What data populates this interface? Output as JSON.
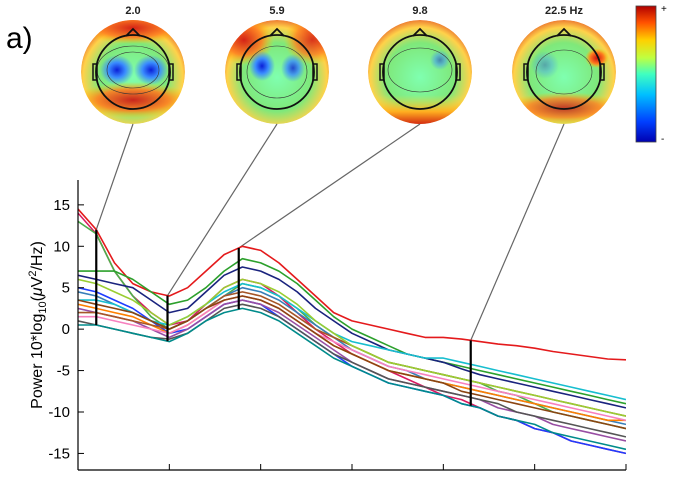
{
  "panel_label": "a)",
  "chart_data": {
    "type": "line",
    "ylabel": "Power 10*log10(μV²/Hz)",
    "ylim": [
      -17,
      18
    ],
    "yticks": [
      15,
      10,
      5,
      0,
      -5,
      -10,
      -15
    ],
    "xlim": [
      1,
      31
    ],
    "x": [
      1,
      2,
      3,
      4,
      5,
      6,
      7,
      8,
      9,
      10,
      11,
      12,
      13,
      14,
      15,
      16,
      17,
      18,
      19,
      20,
      21,
      22,
      23,
      24,
      25,
      26,
      27,
      28,
      29,
      30,
      31
    ],
    "grid": false,
    "legend": "none",
    "highlighted_frequencies": [
      2.0,
      5.9,
      9.8,
      22.5
    ],
    "topomap_labels": [
      "2.0",
      "5.9",
      "9.8",
      "22.5 Hz"
    ],
    "colorbar": {
      "max_label": "+",
      "min_label": "-"
    },
    "series": [
      {
        "color": "#e41a1c",
        "values": [
          14.5,
          12,
          8,
          5.5,
          4.5,
          4,
          5,
          7,
          9,
          10,
          9.5,
          8,
          6,
          4,
          2,
          1,
          0.5,
          0,
          -0.5,
          -1,
          -1,
          -1.2,
          -1.5,
          -1.8,
          -2,
          -2.3,
          -2.7,
          -3,
          -3.3,
          -3.6,
          -3.7
        ]
      },
      {
        "color": "#d81b60",
        "values": [
          14,
          11.5,
          7,
          4,
          2,
          0.5,
          1,
          3,
          5,
          6,
          5.5,
          4,
          2,
          0,
          -1.5,
          -3,
          -4,
          -5,
          -6,
          -7,
          -8,
          -8.5,
          -9.5,
          -10.5,
          -11,
          -12,
          -12.5,
          -13.5,
          -14,
          -14.5,
          -15
        ]
      },
      {
        "color": "#4daf4a",
        "values": [
          13,
          11.5,
          7,
          4,
          1.5,
          0,
          1,
          2.5,
          4,
          5.5,
          5,
          4,
          2.5,
          0.5,
          -1,
          -2,
          -3,
          -4,
          -4.5,
          -5,
          -5.5,
          -6,
          -6.5,
          -7.5,
          -8,
          -9,
          -10,
          -10.5,
          -11,
          -11.5,
          -12
        ]
      },
      {
        "color": "#2ca02c",
        "values": [
          7,
          7,
          7,
          6,
          4.5,
          3,
          3.5,
          5,
          7,
          8.5,
          8,
          7,
          5.5,
          3.5,
          1.5,
          0,
          -1,
          -2,
          -3,
          -3.5,
          -4,
          -4.5,
          -5,
          -5.5,
          -6,
          -6.5,
          -7,
          -7.5,
          -8,
          -8.5,
          -9
        ]
      },
      {
        "color": "#1a237e",
        "values": [
          6.5,
          6,
          5.5,
          5,
          3.5,
          2,
          2.5,
          4.5,
          6.5,
          7.5,
          7,
          6,
          4.5,
          2.5,
          1,
          -0.5,
          -1.5,
          -2.5,
          -3,
          -3.5,
          -4,
          -4.8,
          -5.5,
          -6,
          -6.5,
          -7,
          -7.5,
          -8,
          -8.5,
          -9,
          -9.5
        ]
      },
      {
        "color": "#1f3cff",
        "values": [
          5,
          4.5,
          3.5,
          2.5,
          1,
          -0.5,
          0,
          1.5,
          3,
          3.5,
          3,
          1.5,
          0,
          -1.5,
          -3,
          -4.5,
          -5.5,
          -6.5,
          -7,
          -7.5,
          -8,
          -9,
          -9.5,
          -10.5,
          -11,
          -12,
          -12.5,
          -13.5,
          -14,
          -14.5,
          -15
        ]
      },
      {
        "color": "#377eb8",
        "values": [
          4.5,
          4,
          3,
          2,
          1,
          0,
          1,
          2.5,
          4,
          5,
          4.5,
          3.5,
          2,
          0.5,
          -1,
          -2.5,
          -3.5,
          -4.5,
          -5,
          -6,
          -6.5,
          -7,
          -7.5,
          -8,
          -8.5,
          -9,
          -9.5,
          -10,
          -10.5,
          -11,
          -11.5
        ]
      },
      {
        "color": "#17becf",
        "values": [
          3.5,
          3.5,
          3,
          2,
          1,
          0.5,
          1.5,
          3,
          4.5,
          5.5,
          5,
          4,
          2.5,
          1,
          -0.5,
          -1.5,
          -2,
          -2.5,
          -3,
          -3.5,
          -3.5,
          -4,
          -4.5,
          -5,
          -5.5,
          -6,
          -6.5,
          -7,
          -7.5,
          -8,
          -8.5
        ]
      },
      {
        "color": "#ff7f00",
        "values": [
          3,
          2.5,
          2,
          1.5,
          0.5,
          -0.5,
          0.5,
          2,
          3.5,
          4,
          3.5,
          2.5,
          1,
          -0.5,
          -2,
          -3,
          -4,
          -5,
          -5.5,
          -6,
          -6.5,
          -7,
          -7.5,
          -8,
          -8.5,
          -9,
          -9.5,
          -10,
          -10.5,
          -11,
          -11
        ]
      },
      {
        "color": "#984ea3",
        "values": [
          2.5,
          2,
          1.5,
          1,
          0,
          -1,
          0,
          1.5,
          3,
          3.5,
          3,
          2,
          0.5,
          -1,
          -2.5,
          -4,
          -5,
          -6,
          -6.5,
          -7,
          -7.5,
          -8,
          -8.5,
          -9.5,
          -10,
          -10.5,
          -11.5,
          -12,
          -12.5,
          -13,
          -13.5
        ]
      },
      {
        "color": "#a65628",
        "values": [
          2,
          2,
          1.5,
          1,
          0.5,
          0,
          1,
          2.5,
          4,
          4.5,
          4,
          3,
          1.5,
          0,
          -1,
          -2,
          -3,
          -4,
          -4.5,
          -5,
          -5.5,
          -6,
          -6.5,
          -7,
          -7.5,
          -8,
          -8.5,
          -9,
          -9.5,
          -10,
          -10.5
        ]
      },
      {
        "color": "#f781bf",
        "values": [
          1.5,
          1.5,
          1,
          0.5,
          0,
          -0.5,
          0.5,
          2,
          3.5,
          4,
          3.5,
          2.5,
          1,
          -0.5,
          -1.5,
          -2.5,
          -3.5,
          -4.5,
          -5,
          -5.5,
          -6,
          -6.5,
          -7,
          -7.5,
          -8,
          -8.5,
          -9,
          -9.5,
          -10,
          -10.5,
          -11
        ]
      },
      {
        "color": "#555555",
        "values": [
          1,
          0.5,
          0,
          -0.5,
          -1,
          -1.2,
          -0.5,
          1,
          2.5,
          3,
          2.5,
          1.5,
          0,
          -1.5,
          -3,
          -4,
          -5,
          -6,
          -6.5,
          -7,
          -7.5,
          -8,
          -8.5,
          -9,
          -10,
          -10.5,
          -11,
          -11.5,
          -12,
          -12.5,
          -13
        ]
      },
      {
        "color": "#9acd32",
        "values": [
          6,
          5.5,
          4.5,
          3.5,
          2,
          0.5,
          1.5,
          3,
          5,
          6,
          5.5,
          4.5,
          3,
          1,
          -0.5,
          -2,
          -3,
          -4,
          -4.5,
          -5,
          -5.5,
          -6,
          -6.5,
          -7,
          -7.5,
          -8,
          -8.5,
          -9,
          -9.5,
          -10,
          -10.5
        ]
      },
      {
        "color": "#008b8b",
        "values": [
          0.5,
          0.5,
          0,
          -0.5,
          -1,
          -1.5,
          -0.5,
          1,
          2,
          2.5,
          2,
          1,
          -0.5,
          -2,
          -3.5,
          -4.5,
          -5.5,
          -6.5,
          -7,
          -7.5,
          -8,
          -9,
          -9.5,
          -10.5,
          -11,
          -11.5,
          -12.5,
          -13,
          -13.5,
          -14,
          -14.5
        ]
      },
      {
        "color": "#8b4513",
        "values": [
          3.5,
          3,
          2.5,
          2,
          1,
          0,
          1,
          2.5,
          3.5,
          4,
          3.5,
          2.5,
          1,
          -0.5,
          -2,
          -3,
          -4,
          -5,
          -5.5,
          -6,
          -6.5,
          -7.5,
          -8,
          -8.5,
          -9,
          -9.5,
          -10,
          -10.5,
          -11,
          -11.5,
          -12
        ]
      }
    ]
  }
}
